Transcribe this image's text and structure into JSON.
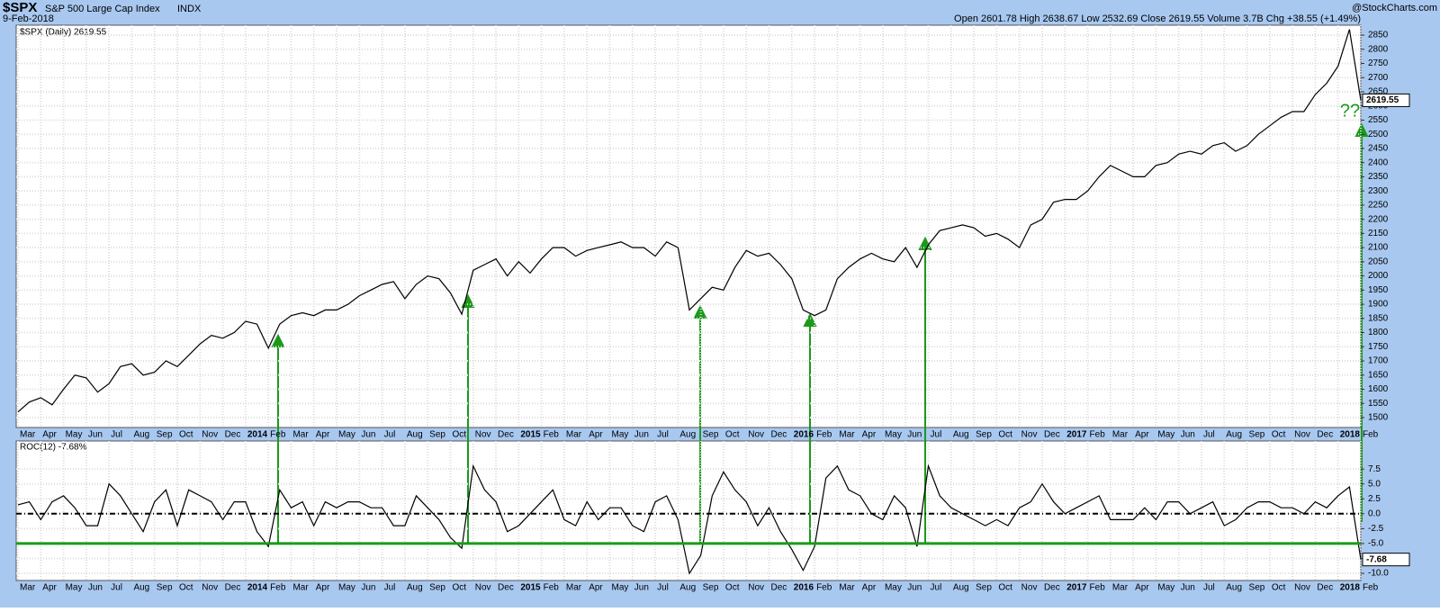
{
  "header": {
    "symbol": "$SPX",
    "name": "S&P 500 Large Cap Index",
    "exchange": "INDX",
    "date": "9-Feb-2018",
    "stats": "Open 2601.78 High 2638.67 Low 2532.69 Close 2619.55 Volume 3.7B Chg +38.55 (+1.49%)",
    "watermark": "@StockCharts.com"
  },
  "chart_data": [
    {
      "type": "line",
      "legend": "$SPX (Daily) 2619.55",
      "last_label": "2619.55",
      "annotation": "??",
      "ylim": [
        1465,
        2885
      ],
      "yticks": [
        1500,
        1550,
        1600,
        1650,
        1700,
        1750,
        1800,
        1850,
        1900,
        1950,
        2000,
        2050,
        2100,
        2150,
        2200,
        2250,
        2300,
        2350,
        2400,
        2450,
        2500,
        2550,
        2600,
        2650,
        2700,
        2750,
        2800,
        2850
      ],
      "grid": true,
      "xticks": [
        "Mar",
        "Apr",
        "May",
        "Jun",
        "Jul",
        "Aug",
        "Sep",
        "Oct",
        "Nov",
        "Dec",
        "2014",
        "Feb",
        "Mar",
        "Apr",
        "May",
        "Jun",
        "Jul",
        "Aug",
        "Sep",
        "Oct",
        "Nov",
        "Dec",
        "2015",
        "Feb",
        "Mar",
        "Apr",
        "May",
        "Jun",
        "Jul",
        "Aug",
        "Sep",
        "Oct",
        "Nov",
        "Dec",
        "2016",
        "Feb",
        "Mar",
        "Apr",
        "May",
        "Jun",
        "Jul",
        "Aug",
        "Sep",
        "Oct",
        "Nov",
        "Dec",
        "2017",
        "Feb",
        "Mar",
        "Apr",
        "May",
        "Jun",
        "Jul",
        "Aug",
        "Sep",
        "Oct",
        "Nov",
        "Dec",
        "2018",
        "Feb"
      ],
      "series": [
        {
          "name": "$SPX",
          "color": "#000000",
          "values": [
            1520,
            1555,
            1570,
            1545,
            1600,
            1650,
            1640,
            1590,
            1620,
            1680,
            1690,
            1650,
            1660,
            1700,
            1680,
            1720,
            1760,
            1790,
            1780,
            1800,
            1840,
            1830,
            1745,
            1830,
            1860,
            1870,
            1860,
            1880,
            1880,
            1900,
            1930,
            1950,
            1970,
            1980,
            1920,
            1970,
            2000,
            1990,
            1940,
            1865,
            2020,
            2040,
            2060,
            2000,
            2050,
            2010,
            2060,
            2100,
            2100,
            2070,
            2090,
            2100,
            2110,
            2120,
            2100,
            2100,
            2070,
            2120,
            2100,
            1880,
            1920,
            1960,
            1950,
            2030,
            2090,
            2070,
            2080,
            2040,
            1990,
            1880,
            1860,
            1880,
            1990,
            2030,
            2060,
            2080,
            2060,
            2050,
            2100,
            2030,
            2110,
            2160,
            2170,
            2180,
            2170,
            2140,
            2150,
            2130,
            2100,
            2180,
            2200,
            2260,
            2270,
            2270,
            2300,
            2350,
            2390,
            2370,
            2350,
            2350,
            2390,
            2400,
            2430,
            2440,
            2430,
            2460,
            2470,
            2440,
            2460,
            2500,
            2530,
            2560,
            2580,
            2580,
            2640,
            2680,
            2740,
            2870,
            2620
          ]
        }
      ]
    },
    {
      "type": "line",
      "legend": "ROC(12) -7.68%",
      "last_label": "-7.68",
      "ylim": [
        -11.2,
        12.2
      ],
      "yticks": [
        7.5,
        {
          "value": 5,
          "label": "5.0"
        },
        2.5,
        {
          "value": 0,
          "label": "0.0"
        },
        -2.5,
        {
          "value": -5,
          "label": "-5.0"
        },
        -7.5,
        {
          "value": -10,
          "label": "-10.0"
        }
      ],
      "grid": true,
      "zero_line": 0,
      "threshold": -5,
      "xticks": [
        "Mar",
        "Apr",
        "May",
        "Jun",
        "Jul",
        "Aug",
        "Sep",
        "Oct",
        "Nov",
        "Dec",
        "2014",
        "Feb",
        "Mar",
        "Apr",
        "May",
        "Jun",
        "Jul",
        "Aug",
        "Sep",
        "Oct",
        "Nov",
        "Dec",
        "2015",
        "Feb",
        "Mar",
        "Apr",
        "May",
        "Jun",
        "Jul",
        "Aug",
        "Sep",
        "Oct",
        "Nov",
        "Dec",
        "2016",
        "Feb",
        "Mar",
        "Apr",
        "May",
        "Jun",
        "Jul",
        "Aug",
        "Sep",
        "Oct",
        "Nov",
        "Dec",
        "2017",
        "Feb",
        "Mar",
        "Apr",
        "May",
        "Jun",
        "Jul",
        "Aug",
        "Sep",
        "Oct",
        "Nov",
        "Dec",
        "2018",
        "Feb"
      ],
      "series": [
        {
          "name": "ROC(12)",
          "color": "#000000",
          "values": [
            1.5,
            2,
            -1,
            2,
            3,
            1,
            -2,
            -2,
            5,
            3,
            0,
            -3,
            2,
            4,
            -2,
            4,
            3,
            2,
            -1,
            2,
            2,
            -3,
            -5.5,
            4,
            1,
            2,
            -2,
            2,
            1,
            2,
            2,
            1,
            1,
            -2,
            -2,
            3,
            1,
            -1,
            -4,
            -5.8,
            8,
            4,
            2,
            -3,
            -2,
            0,
            2,
            4,
            -1,
            -2,
            2,
            -1,
            1,
            1,
            -2,
            -3,
            2,
            3,
            -1,
            -10,
            -7,
            3,
            7,
            4,
            2,
            -2,
            1,
            -3,
            -6,
            -9.5,
            -5.5,
            6,
            8,
            4,
            3,
            0,
            -1,
            3,
            1,
            -5.5,
            8,
            3,
            1,
            0,
            -1,
            -2,
            -1,
            -2,
            1,
            2,
            5,
            2,
            0,
            1,
            2,
            3,
            -1,
            -1,
            -1,
            1,
            -1,
            2,
            2,
            0,
            1,
            2,
            -2,
            -1,
            1,
            2,
            2,
            1,
            1,
            0,
            2,
            1,
            3,
            4.5,
            -7.68
          ]
        }
      ]
    }
  ]
}
